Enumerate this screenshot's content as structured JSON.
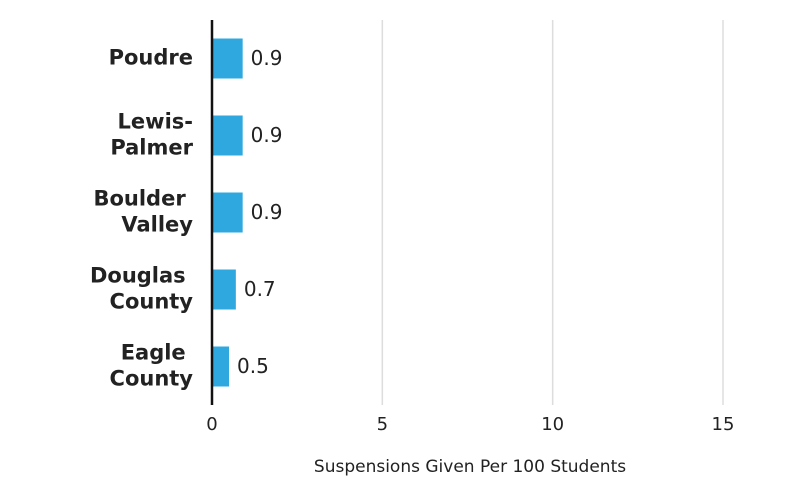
{
  "chart_data": {
    "type": "barh",
    "categories": [
      "Poudre",
      "Lewis-Palmer",
      "Boulder Valley",
      "Douglas County",
      "Eagle County"
    ],
    "values": [
      0.9,
      0.9,
      0.9,
      0.7,
      0.5
    ],
    "color": "#2ea8df",
    "xlabel": "Suspensions Given Per 100 Students",
    "xlim": [
      0,
      15
    ],
    "xticks": [
      0,
      5,
      10,
      15
    ],
    "grid": true
  }
}
